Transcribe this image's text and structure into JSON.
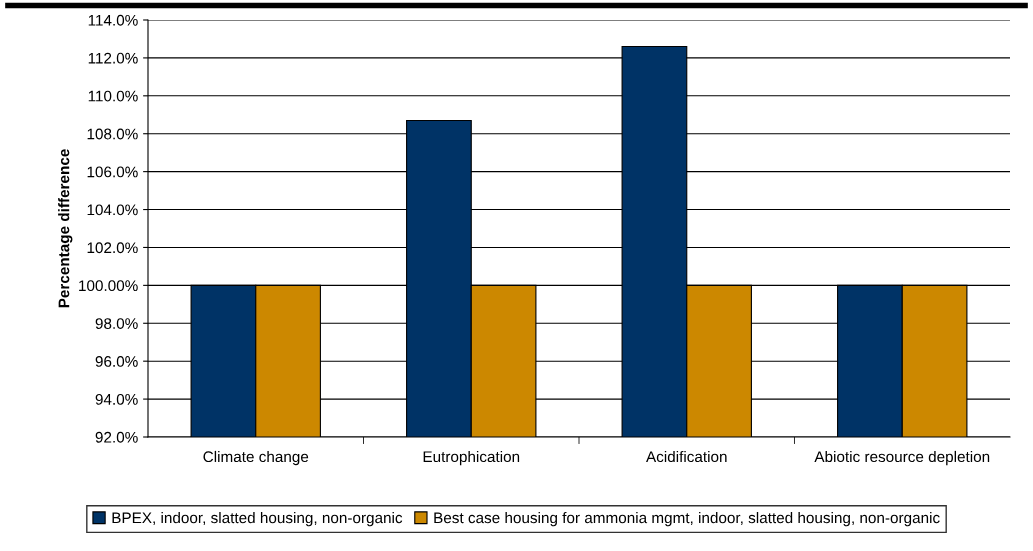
{
  "chart_data": {
    "type": "bar",
    "ylabel": "Percentage difference",
    "categories": [
      "Climate change",
      "Eutrophication",
      "Acidification",
      "Abiotic resource depletion"
    ],
    "series": [
      {
        "name": "BPEX, indoor, slatted housing, non-organic",
        "color": "#003366",
        "values": [
          100.0,
          108.7,
          112.6,
          100.0
        ]
      },
      {
        "name": "Best case housing for ammonia mgmt, indoor, slatted housing, non-organic",
        "color": "#cc8800",
        "values": [
          100.0,
          100.0,
          100.0,
          100.0
        ]
      }
    ],
    "ylim": [
      92,
      114
    ],
    "yticks": [
      {
        "value": 92,
        "label": "92.0%"
      },
      {
        "value": 94,
        "label": "94.0%"
      },
      {
        "value": 96,
        "label": "96.0%"
      },
      {
        "value": 98,
        "label": "98.0%"
      },
      {
        "value": 100,
        "label": "100.00%"
      },
      {
        "value": 102,
        "label": "102.0%"
      },
      {
        "value": 104,
        "label": "104.0%"
      },
      {
        "value": 106,
        "label": "106.0%"
      },
      {
        "value": 108,
        "label": "108.0%"
      },
      {
        "value": 110,
        "label": "110.0%"
      },
      {
        "value": 112,
        "label": "112.0%"
      },
      {
        "value": 114,
        "label": "114.0%"
      }
    ],
    "grid": "y",
    "legend": "bottom"
  }
}
